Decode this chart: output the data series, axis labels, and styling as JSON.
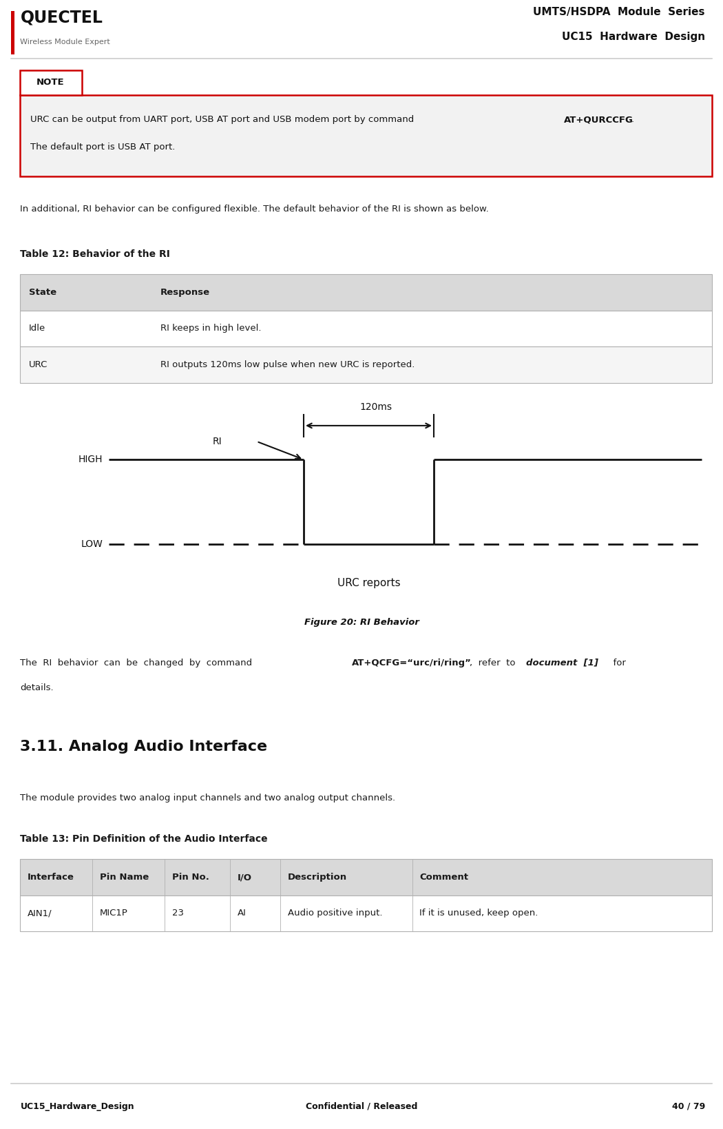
{
  "page_width": 10.5,
  "page_height": 16.39,
  "bg_color": "#ffffff",
  "header": {
    "logo_text": "QUECTEL",
    "logo_sub": "Wireless Module Expert",
    "right_line1": "UMTS/HSDPA  Module  Series",
    "right_line2": "UC15  Hardware  Design",
    "separator_color": "#cccccc"
  },
  "footer": {
    "left": "UC15_Hardware_Design",
    "center": "Confidential / Released",
    "right": "40 / 79",
    "separator_color": "#cccccc"
  },
  "note_box": {
    "label": "NOTE",
    "text_normal": "URC can be output from UART port, USB AT port and USB modem port by command ",
    "text_bold": "AT+QURCCFG",
    "text_after": ".",
    "text_line2": "The default port is USB AT port.",
    "border_color": "#cc0000",
    "bg_color": "#f2f2f2"
  },
  "para1": "In additional, RI behavior can be configured flexible. The default behavior of the RI is shown as below.",
  "table12_title": "Table 12: Behavior of the RI",
  "table12_header": [
    "State",
    "Response"
  ],
  "table12_rows": [
    [
      "Idle",
      "RI keeps in high level."
    ],
    [
      "URC",
      "RI outputs 120ms low pulse when new URC is reported."
    ]
  ],
  "table12_header_bg": "#d9d9d9",
  "table12_row_bg": [
    "#ffffff",
    "#f5f5f5"
  ],
  "figure_caption": "Figure 20: RI Behavior",
  "figure": {
    "high_label": "HIGH",
    "low_label": "LOW",
    "ri_label": "RI",
    "time_label": "120ms",
    "urc_label": "URC reports"
  },
  "para2_normal1": "The  RI  behavior  can  be  changed  by  command ",
  "para2_bold1": "AT+QCFG=“urc/ri/ring”",
  "para2_normal2": ",  refer  to  ",
  "para2_bold2": "document  [1]",
  "para2_normal3": "  for",
  "para2_line2": "details.",
  "section_title": "3.11. Analog Audio Interface",
  "para3": "The module provides two analog input channels and two analog output channels.",
  "table13_title": "Table 13: Pin Definition of the Audio Interface",
  "table13_header": [
    "Interface",
    "Pin Name",
    "Pin No.",
    "I/O",
    "Description",
    "Comment"
  ],
  "table13_rows": [
    [
      "AIN1/",
      "MIC1P",
      "23",
      "AI",
      "Audio positive input.",
      "If it is unused, keep open."
    ]
  ],
  "table13_header_bg": "#d9d9d9",
  "table13_row_bg": "#ffffff",
  "text_color": "#1a1a1a"
}
